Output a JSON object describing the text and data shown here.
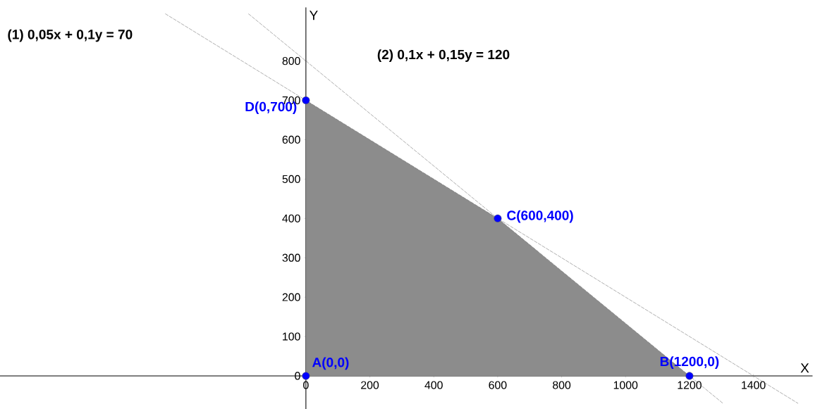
{
  "chart_data": {
    "type": "line",
    "xlabel": "X",
    "ylabel": "Y",
    "xlim": [
      -957,
      1585
    ],
    "ylim": [
      -85,
      936
    ],
    "xticks": [
      0,
      200,
      400,
      600,
      800,
      1000,
      1200,
      1400
    ],
    "yticks": [
      0,
      100,
      200,
      300,
      400,
      500,
      600,
      700,
      800
    ],
    "grid": false,
    "series": [
      {
        "type": "area",
        "color": "#8c8c8c",
        "x": [
          0,
          0,
          600,
          1200
        ],
        "values": [
          0,
          700,
          400,
          0
        ]
      },
      {
        "color": "#666666",
        "line_style": "dashed",
        "marker": "none",
        "x": [
          -440,
          1540
        ],
        "values": [
          920,
          -70
        ]
      },
      {
        "color": "#666666",
        "line_style": "dashed",
        "marker": "none",
        "x": [
          -180,
          1305
        ],
        "values": [
          920,
          -70
        ]
      },
      {
        "type": "scatter",
        "color": "#0000ff",
        "marker": "circle",
        "x": [
          0,
          1200,
          600,
          0
        ],
        "values": [
          0,
          0,
          400,
          700
        ]
      }
    ],
    "annotations": [
      "(1) 0,05x + 0,1y = 70",
      "(2)  0,1x + 0,15y = 120",
      {
        "text": "A(0,0)",
        "x": 0,
        "y": 0
      },
      {
        "text": "B(1200,0)",
        "x": 1200,
        "y": 0
      },
      {
        "text": "C(600,400)",
        "x": 600,
        "y": 400
      },
      {
        "text": "D(0,700)",
        "x": 0,
        "y": 700
      }
    ]
  }
}
